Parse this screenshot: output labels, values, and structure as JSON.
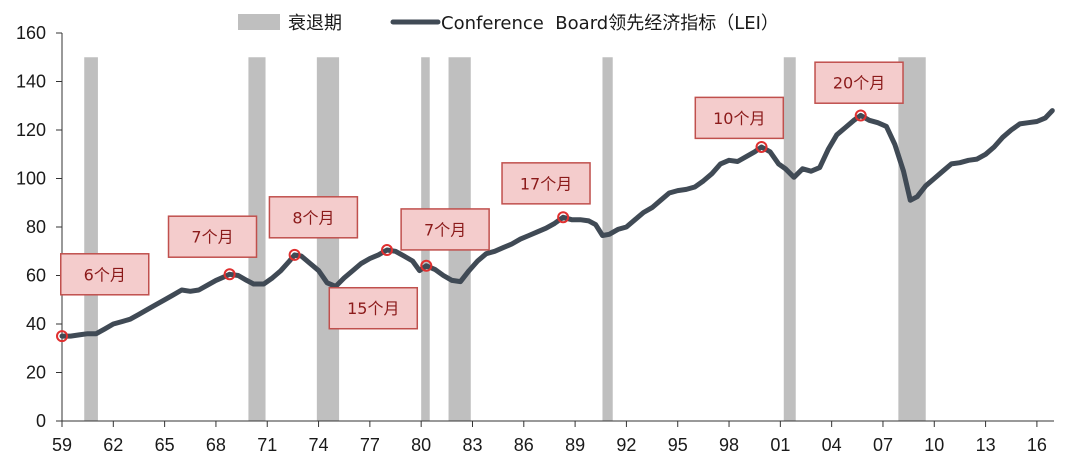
{
  "chart_data": {
    "type": "line",
    "legend": {
      "items": [
        {
          "label": "衰退期",
          "kind": "band",
          "color": "#bfbfbf"
        },
        {
          "label": "Conference  Board领先经济指标（LEI）",
          "kind": "line",
          "color": "#404a55"
        }
      ],
      "placement": "top-center"
    },
    "ylim": [
      0,
      160
    ],
    "yticks": [
      0,
      20,
      40,
      60,
      80,
      100,
      120,
      140,
      160
    ],
    "xlim": [
      1959,
      2017
    ],
    "xtick_labels": [
      "59",
      "62",
      "65",
      "68",
      "71",
      "74",
      "77",
      "80",
      "83",
      "86",
      "89",
      "92",
      "95",
      "98",
      "01",
      "04",
      "07",
      "10",
      "13",
      "16"
    ],
    "xtick_values": [
      1959,
      1962,
      1965,
      1968,
      1971,
      1974,
      1977,
      1980,
      1983,
      1986,
      1989,
      1992,
      1995,
      1998,
      2001,
      2004,
      2007,
      2010,
      2013,
      2016
    ],
    "recessions": [
      [
        1960.3,
        1961.1
      ],
      [
        1969.9,
        1970.9
      ],
      [
        1973.9,
        1975.2
      ],
      [
        1980.0,
        1980.5
      ],
      [
        1981.6,
        1982.9
      ],
      [
        1990.6,
        1991.2
      ],
      [
        2001.2,
        2001.9
      ],
      [
        2007.9,
        2009.5
      ]
    ],
    "series": [
      {
        "name": "Conference  Board领先经济指标（LEI）",
        "color": "#404a55",
        "points": [
          [
            1959.0,
            35
          ],
          [
            1959.5,
            35
          ],
          [
            1960.0,
            35.5
          ],
          [
            1960.5,
            36
          ],
          [
            1961.0,
            36
          ],
          [
            1961.5,
            38
          ],
          [
            1962.0,
            40
          ],
          [
            1962.5,
            41
          ],
          [
            1963.0,
            42
          ],
          [
            1963.5,
            44
          ],
          [
            1964.0,
            46
          ],
          [
            1964.5,
            48
          ],
          [
            1965.0,
            50
          ],
          [
            1965.5,
            52
          ],
          [
            1966.0,
            54
          ],
          [
            1966.5,
            53.5
          ],
          [
            1967.0,
            54
          ],
          [
            1967.5,
            56
          ],
          [
            1968.0,
            58
          ],
          [
            1968.5,
            59.5
          ],
          [
            1968.8,
            60.5
          ],
          [
            1969.3,
            60
          ],
          [
            1969.8,
            58
          ],
          [
            1970.2,
            56.5
          ],
          [
            1970.8,
            56.5
          ],
          [
            1971.3,
            59
          ],
          [
            1971.8,
            62
          ],
          [
            1972.3,
            66
          ],
          [
            1972.6,
            68.5
          ],
          [
            1973.0,
            68
          ],
          [
            1973.5,
            65
          ],
          [
            1974.0,
            62
          ],
          [
            1974.5,
            57
          ],
          [
            1975.0,
            55.5
          ],
          [
            1975.5,
            59
          ],
          [
            1976.0,
            62
          ],
          [
            1976.5,
            65
          ],
          [
            1977.0,
            67
          ],
          [
            1977.5,
            68.5
          ],
          [
            1978.0,
            70.5
          ],
          [
            1978.5,
            70
          ],
          [
            1979.0,
            68
          ],
          [
            1979.5,
            66
          ],
          [
            1979.9,
            62
          ],
          [
            1980.3,
            64
          ],
          [
            1980.8,
            62.5
          ],
          [
            1981.3,
            60
          ],
          [
            1981.8,
            58
          ],
          [
            1982.3,
            57.5
          ],
          [
            1982.8,
            62
          ],
          [
            1983.3,
            66
          ],
          [
            1983.8,
            69
          ],
          [
            1984.3,
            70
          ],
          [
            1984.8,
            71.5
          ],
          [
            1985.3,
            73
          ],
          [
            1985.8,
            75
          ],
          [
            1986.3,
            76.5
          ],
          [
            1986.8,
            78
          ],
          [
            1987.3,
            79.5
          ],
          [
            1987.8,
            81.5
          ],
          [
            1988.3,
            84
          ],
          [
            1988.8,
            83
          ],
          [
            1989.3,
            83
          ],
          [
            1989.8,
            82.5
          ],
          [
            1990.2,
            81
          ],
          [
            1990.6,
            76.5
          ],
          [
            1991.0,
            77
          ],
          [
            1991.5,
            79
          ],
          [
            1992.0,
            80
          ],
          [
            1992.5,
            83
          ],
          [
            1993.0,
            86
          ],
          [
            1993.5,
            88
          ],
          [
            1994.0,
            91
          ],
          [
            1994.5,
            94
          ],
          [
            1995.0,
            95
          ],
          [
            1995.5,
            95.5
          ],
          [
            1996.0,
            96.5
          ],
          [
            1996.5,
            99
          ],
          [
            1997.0,
            102
          ],
          [
            1997.5,
            106
          ],
          [
            1998.0,
            107.5
          ],
          [
            1998.5,
            107
          ],
          [
            1999.0,
            109
          ],
          [
            1999.5,
            111
          ],
          [
            1999.9,
            113
          ],
          [
            2000.4,
            111
          ],
          [
            2000.9,
            106
          ],
          [
            2001.3,
            104
          ],
          [
            2001.8,
            100.5
          ],
          [
            2002.3,
            104
          ],
          [
            2002.8,
            103
          ],
          [
            2003.3,
            104.5
          ],
          [
            2003.8,
            112
          ],
          [
            2004.3,
            118
          ],
          [
            2004.8,
            121
          ],
          [
            2005.3,
            124
          ],
          [
            2005.7,
            126
          ],
          [
            2006.2,
            124
          ],
          [
            2006.7,
            123
          ],
          [
            2007.2,
            121.5
          ],
          [
            2007.7,
            114
          ],
          [
            2008.2,
            103
          ],
          [
            2008.6,
            91
          ],
          [
            2009.0,
            92.5
          ],
          [
            2009.5,
            97
          ],
          [
            2010.0,
            100
          ],
          [
            2010.5,
            103
          ],
          [
            2011.0,
            106
          ],
          [
            2011.5,
            106.5
          ],
          [
            2012.0,
            107.5
          ],
          [
            2012.5,
            108
          ],
          [
            2013.0,
            110
          ],
          [
            2013.5,
            113
          ],
          [
            2014.0,
            117
          ],
          [
            2014.5,
            120
          ],
          [
            2015.0,
            122.5
          ],
          [
            2015.5,
            123
          ],
          [
            2016.0,
            123.5
          ],
          [
            2016.5,
            125
          ],
          [
            2016.9,
            128
          ]
        ]
      }
    ],
    "annotations": [
      {
        "label": "6个月",
        "peak": [
          1959.0,
          35
        ],
        "box": [
          1961.5,
          60.5
        ]
      },
      {
        "label": "7个月",
        "peak": [
          1968.8,
          60.5
        ],
        "box": [
          1967.8,
          76
        ]
      },
      {
        "label": "8个月",
        "peak": [
          1972.6,
          68.5
        ],
        "box": [
          1973.7,
          84
        ]
      },
      {
        "label": "15个月",
        "peak": [
          1978.0,
          70.5
        ],
        "box": [
          1977.2,
          46.5
        ]
      },
      {
        "label": "7个月",
        "peak": [
          1980.3,
          64
        ],
        "box": [
          1981.4,
          79
        ]
      },
      {
        "label": "17个月",
        "peak": [
          1988.3,
          84
        ],
        "box": [
          1987.3,
          98
        ]
      },
      {
        "label": "10个月",
        "peak": [
          1999.9,
          113
        ],
        "box": [
          1998.6,
          125
        ]
      },
      {
        "label": "20个月",
        "peak": [
          2005.7,
          126
        ],
        "box": [
          2005.6,
          139.5
        ]
      }
    ]
  }
}
